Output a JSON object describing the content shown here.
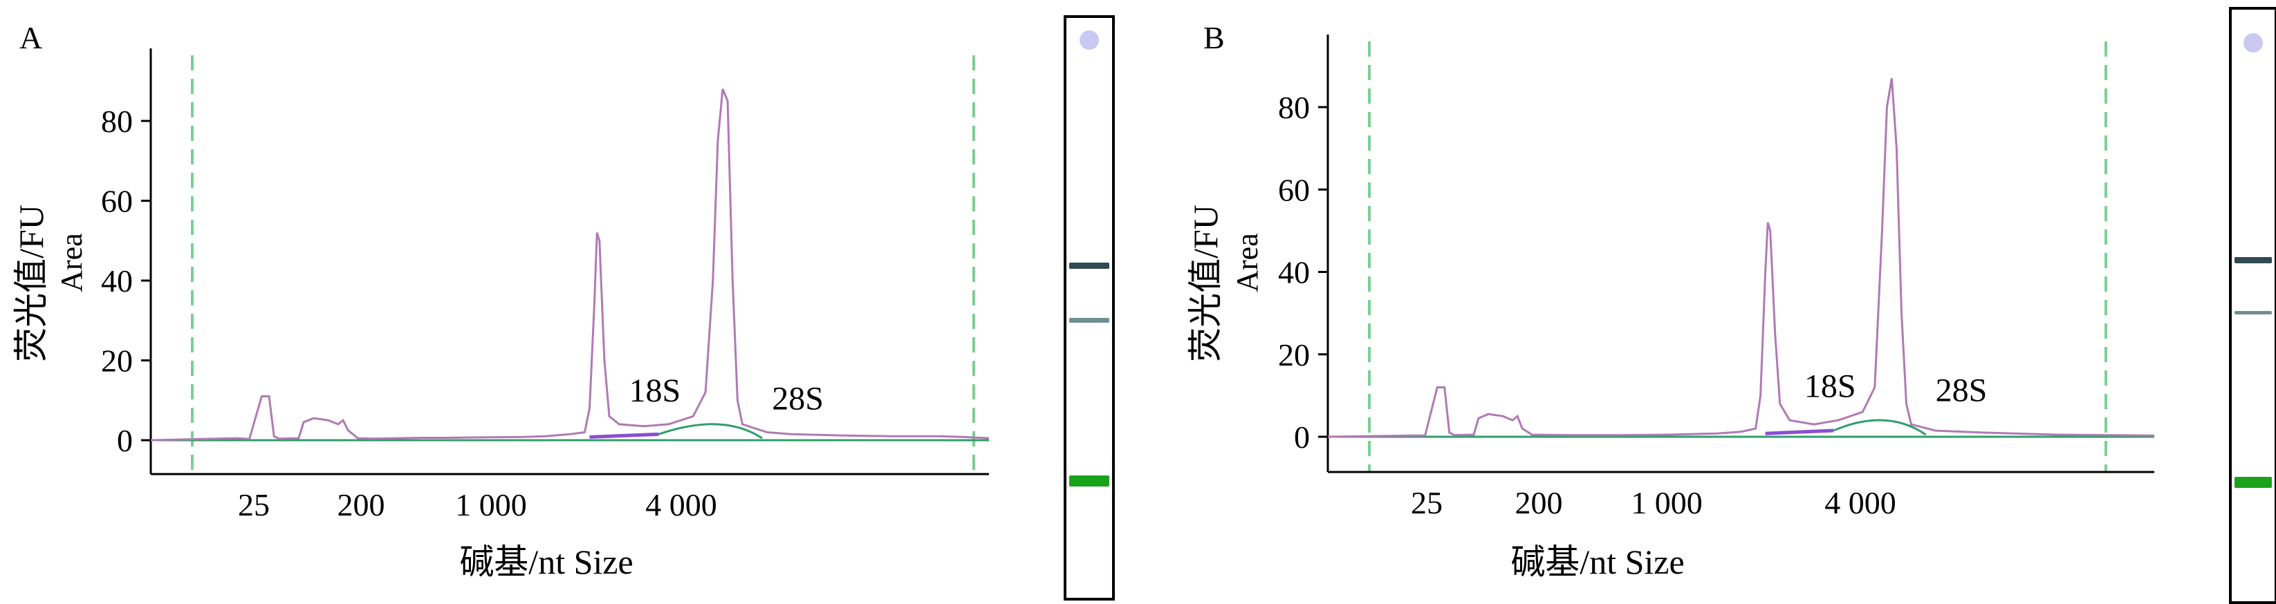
{
  "figure": {
    "colors": {
      "trace": "#b07ab4",
      "baseline": "#2e9e6a",
      "peak_fill": "#8a4fd1",
      "marker_line": "#7ccf94",
      "axis": "#000000",
      "gel_band_dark": "#2f4a52",
      "gel_band_light": "#6f8d92",
      "gel_marker": "#1aa31a",
      "gel_well": "#c9c9f2"
    }
  },
  "chart_data": [
    {
      "type": "line",
      "panel_label": "A",
      "ylabel": "荧光值/FU",
      "ylabel2": "Area",
      "xlabel": "碱基/nt Size",
      "y_ticks": [
        0,
        20,
        40,
        60,
        80
      ],
      "ylim": [
        -8,
        97
      ],
      "x_ticks": [
        "25",
        "200",
        "1 000",
        "4 000"
      ],
      "marker_lines_visible": true,
      "series": [
        {
          "values_description": "electropherogram trace",
          "points": [
            [
              0,
              0
            ],
            [
              35,
              0.5
            ],
            [
              40,
              0.3
            ],
            [
              45,
              11
            ],
            [
              48,
              11
            ],
            [
              50,
              1
            ],
            [
              52,
              0.4
            ],
            [
              60,
              0.5
            ],
            [
              62,
              4.5
            ],
            [
              66,
              5.5
            ],
            [
              72,
              5
            ],
            [
              76,
              4
            ],
            [
              78,
              5
            ],
            [
              80,
              2.5
            ],
            [
              84,
              0.5
            ],
            [
              90,
              0.4
            ],
            [
              100,
              0.5
            ],
            [
              110,
              0.6
            ],
            [
              120,
              0.6
            ],
            [
              130,
              0.7
            ],
            [
              150,
              0.8
            ],
            [
              160,
              1
            ],
            [
              170,
              1.5
            ],
            [
              176,
              2
            ],
            [
              178,
              8
            ],
            [
              180,
              35
            ],
            [
              181,
              52
            ],
            [
              182,
              50
            ],
            [
              184,
              20
            ],
            [
              186,
              6
            ],
            [
              190,
              4
            ],
            [
              200,
              3.5
            ],
            [
              210,
              4
            ],
            [
              220,
              6
            ],
            [
              225,
              12
            ],
            [
              228,
              40
            ],
            [
              230,
              75
            ],
            [
              232,
              88
            ],
            [
              234,
              85
            ],
            [
              236,
              40
            ],
            [
              238,
              10
            ],
            [
              240,
              4
            ],
            [
              250,
              2
            ],
            [
              260,
              1.5
            ],
            [
              280,
              1.2
            ],
            [
              300,
              1
            ],
            [
              320,
              1
            ],
            [
              330,
              0.8
            ],
            [
              340,
              0.5
            ]
          ]
        }
      ],
      "annotations": [
        {
          "text": "18S",
          "x": 194,
          "y": 8
        },
        {
          "text": "28S",
          "x": 252,
          "y": 6
        }
      ]
    },
    {
      "type": "line",
      "panel_label": "B",
      "ylabel": "荧光值/FU",
      "ylabel2": "Area",
      "xlabel": "碱基/nt Size",
      "y_ticks": [
        0,
        20,
        40,
        60,
        80
      ],
      "ylim": [
        -8,
        97
      ],
      "x_ticks": [
        "25",
        "200",
        "1 000",
        "4 000"
      ],
      "marker_lines_visible": true,
      "series": [
        {
          "values_description": "electropherogram trace",
          "points": [
            [
              0,
              0
            ],
            [
              35,
              0.3
            ],
            [
              40,
              0.3
            ],
            [
              45,
              12
            ],
            [
              48,
              12
            ],
            [
              50,
              1
            ],
            [
              52,
              0.4
            ],
            [
              60,
              0.5
            ],
            [
              62,
              4.5
            ],
            [
              66,
              5.5
            ],
            [
              72,
              5
            ],
            [
              76,
              4
            ],
            [
              78,
              5
            ],
            [
              80,
              2
            ],
            [
              84,
              0.5
            ],
            [
              100,
              0.4
            ],
            [
              120,
              0.4
            ],
            [
              140,
              0.5
            ],
            [
              160,
              0.8
            ],
            [
              170,
              1.2
            ],
            [
              176,
              2
            ],
            [
              178,
              10
            ],
            [
              180,
              40
            ],
            [
              181,
              52
            ],
            [
              182,
              50
            ],
            [
              184,
              25
            ],
            [
              186,
              8
            ],
            [
              190,
              4
            ],
            [
              200,
              3
            ],
            [
              210,
              4
            ],
            [
              220,
              6
            ],
            [
              225,
              12
            ],
            [
              228,
              50
            ],
            [
              230,
              80
            ],
            [
              232,
              87
            ],
            [
              234,
              70
            ],
            [
              236,
              30
            ],
            [
              238,
              8
            ],
            [
              240,
              3
            ],
            [
              250,
              1.5
            ],
            [
              270,
              1
            ],
            [
              300,
              0.5
            ],
            [
              340,
              0.3
            ]
          ]
        }
      ],
      "annotations": [
        {
          "text": "18S",
          "x": 196,
          "y": 8
        },
        {
          "text": "28S",
          "x": 250,
          "y": 7
        }
      ]
    }
  ]
}
